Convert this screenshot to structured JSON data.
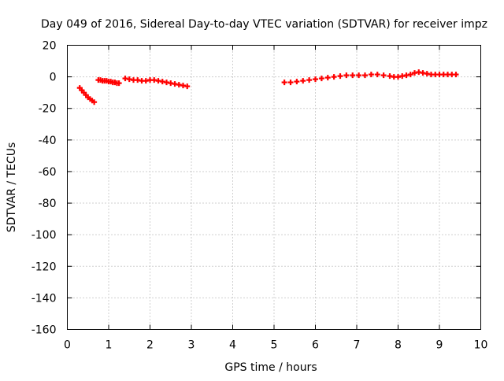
{
  "chart_data": {
    "type": "scatter",
    "title": "Day 049 of 2016, Sidereal Day-to-day VTEC variation (SDTVAR) for receiver impz",
    "xlabel": "GPS time / hours",
    "ylabel": "SDTVAR / TECUs",
    "xlim": [
      0,
      10
    ],
    "ylim": [
      -160,
      20
    ],
    "xticks": [
      0,
      1,
      2,
      3,
      4,
      5,
      6,
      7,
      8,
      9,
      10
    ],
    "yticks": [
      -160,
      -140,
      -120,
      -100,
      -80,
      -60,
      -40,
      -20,
      0,
      20
    ],
    "grid": true,
    "legend": "none",
    "marker": "plus",
    "color": "#ff0000",
    "series": [
      {
        "x": [
          0.3,
          0.35,
          0.4,
          0.45,
          0.5,
          0.55,
          0.6,
          0.65,
          0.75,
          0.8,
          0.85,
          0.9,
          0.95,
          1.0,
          1.05,
          1.1,
          1.15,
          1.2,
          1.25,
          1.4,
          1.5,
          1.6,
          1.7,
          1.8,
          1.9,
          2.0,
          2.1,
          2.2,
          2.3,
          2.4,
          2.5,
          2.6,
          2.7,
          2.8,
          2.9,
          5.25,
          5.4,
          5.55,
          5.7,
          5.85,
          6.0,
          6.15,
          6.3,
          6.45,
          6.6,
          6.75,
          6.9,
          7.05,
          7.2,
          7.35,
          7.5,
          7.65,
          7.8,
          7.9,
          8.0,
          8.1,
          8.2,
          8.3,
          8.4,
          8.5,
          8.6,
          8.7,
          8.8,
          8.9,
          9.0,
          9.1,
          9.2,
          9.3,
          9.4
        ],
        "y": [
          -7,
          -8.5,
          -10,
          -11.5,
          -13,
          -14,
          -15,
          -16,
          -2,
          -2,
          -2.5,
          -2.5,
          -2.5,
          -3,
          -3,
          -3.5,
          -3.5,
          -4,
          -4,
          -1,
          -1.5,
          -2,
          -2,
          -2.5,
          -2.5,
          -2,
          -2,
          -2.5,
          -3,
          -3.5,
          -4,
          -4.5,
          -5,
          -5.5,
          -6,
          -3.5,
          -3.5,
          -3,
          -2.5,
          -2,
          -1.5,
          -1,
          -0.5,
          0,
          0.5,
          1,
          1,
          1,
          1,
          1.5,
          1.5,
          1,
          0.5,
          0,
          0,
          0.5,
          1,
          1.5,
          2.5,
          3,
          2.5,
          2,
          1.5,
          1.5,
          1.5,
          1.5,
          1.5,
          1.5,
          1.5
        ]
      }
    ]
  }
}
